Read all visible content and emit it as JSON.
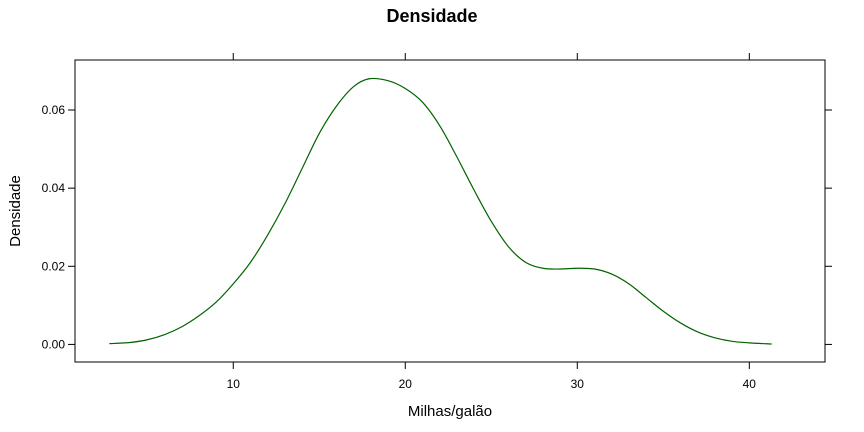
{
  "chart_data": {
    "type": "line",
    "title": "Densidade",
    "xlabel": "Milhas/galão",
    "ylabel": "Densidade",
    "xlim": [
      0.8,
      44.4
    ],
    "ylim": [
      -0.0045,
      0.0728
    ],
    "x_ticks": [
      10,
      20,
      30,
      40
    ],
    "x_tick_labels": [
      "10",
      "20",
      "30",
      "40"
    ],
    "y_ticks": [
      0.0,
      0.02,
      0.04,
      0.06
    ],
    "y_tick_labels": [
      "0.00",
      "0.02",
      "0.04",
      "0.06"
    ],
    "grid": false,
    "legend": "none",
    "series": [
      {
        "color": "#006400",
        "x": [
          2.8,
          4.0,
          5.0,
          6.0,
          7.0,
          8.0,
          9.0,
          10.0,
          11.0,
          12.0,
          13.0,
          14.0,
          15.0,
          16.0,
          17.0,
          17.9,
          19.0,
          20.0,
          21.0,
          22.0,
          23.0,
          24.0,
          25.0,
          26.0,
          27.0,
          28.0,
          29.0,
          30.0,
          31.0,
          32.0,
          33.0,
          34.0,
          35.0,
          36.0,
          37.0,
          38.0,
          39.0,
          40.0,
          41.3
        ],
        "y": [
          0.0002,
          0.0005,
          0.0012,
          0.0025,
          0.0045,
          0.0073,
          0.0108,
          0.0155,
          0.021,
          0.028,
          0.036,
          0.045,
          0.054,
          0.061,
          0.066,
          0.068,
          0.0675,
          0.0655,
          0.062,
          0.056,
          0.048,
          0.0395,
          0.0315,
          0.025,
          0.021,
          0.0195,
          0.0193,
          0.0195,
          0.0193,
          0.018,
          0.0155,
          0.012,
          0.0085,
          0.0055,
          0.0032,
          0.0017,
          0.0008,
          0.0004,
          0.0001
        ]
      }
    ]
  }
}
